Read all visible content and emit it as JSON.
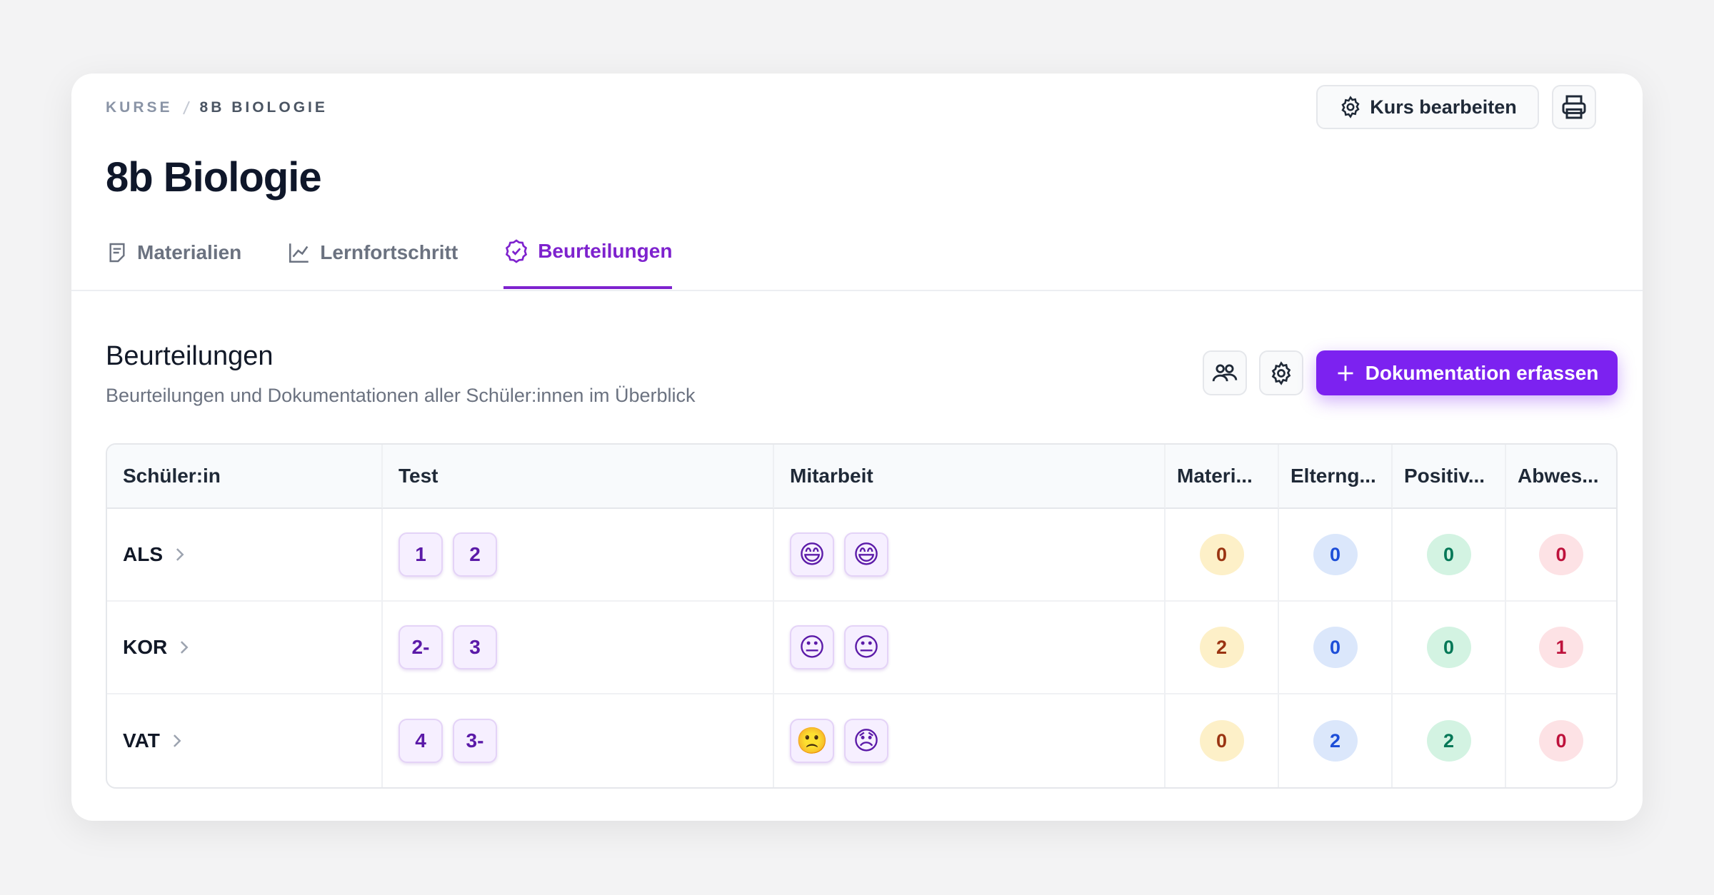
{
  "breadcrumb": [
    "KURSE",
    "8B BIOLOGIE"
  ],
  "header": {
    "title": "8b Biologie",
    "edit_button": "Kurs bearbeiten"
  },
  "tabs": [
    "Materialien",
    "Lernfortschritt",
    "Beurteilungen"
  ],
  "section": {
    "title": "Beurteilungen",
    "subtitle": "Beurteilungen und Dokumentationen aller Schüler:innen im Überblick",
    "primary_button": "Dokumentation erfassen"
  },
  "table": {
    "columns": [
      "Schüler:in",
      "Test",
      "Mitarbeit",
      "Materi...",
      "Elterng...",
      "Positiv...",
      "Abwes..."
    ],
    "rows": [
      {
        "student": "ALS",
        "test": [
          "1",
          "2"
        ],
        "mitarbeit": [
          "😄",
          "😄"
        ],
        "counts": [
          0,
          0,
          0,
          0
        ]
      },
      {
        "student": "KOR",
        "test": [
          "2-",
          "3"
        ],
        "mitarbeit": [
          "😐",
          "😐"
        ],
        "counts": [
          2,
          0,
          0,
          1
        ]
      },
      {
        "student": "VAT",
        "test": [
          "4",
          "3-"
        ],
        "mitarbeit": [
          "🙁",
          "😞"
        ],
        "counts": [
          0,
          2,
          2,
          0
        ]
      }
    ]
  }
}
